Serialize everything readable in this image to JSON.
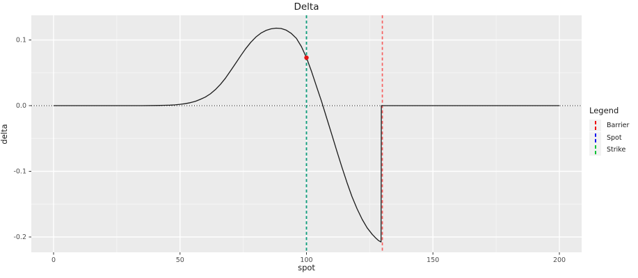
{
  "title": "Delta",
  "axes": {
    "x_label": "spot",
    "y_label": "delta"
  },
  "legend": {
    "title": "Legend",
    "position": "right",
    "items": [
      {
        "label": "Barrier",
        "color": "#ee0000",
        "style": "dashed"
      },
      {
        "label": "Spot",
        "color": "#1111ee",
        "style": "dashed"
      },
      {
        "label": "Strike",
        "color": "#00c232",
        "style": "dashed"
      }
    ]
  },
  "colors": {
    "panel_background": "#ebebeb",
    "grid_major": "#ffffff",
    "grid_minor": "#f5f5f5",
    "curve": "#1a1a1a",
    "tick_text": "#4d4d4d",
    "barrier_line": "#ff0000",
    "spot_line": "#0000ee",
    "strike_line": "#00be50",
    "marker": "#e41414"
  },
  "chart_data": {
    "type": "line",
    "title": "Delta",
    "xlabel": "spot",
    "ylabel": "delta",
    "xlim": [
      -8.8,
      208.8
    ],
    "ylim": [
      -0.2233,
      0.1376
    ],
    "grid": true,
    "legend_position": "right",
    "x_ticks": [
      0,
      50,
      100,
      150,
      200
    ],
    "x_tick_labels": [
      "0",
      "50",
      "100",
      "150",
      "200"
    ],
    "x_minor": [
      25,
      75,
      125,
      175
    ],
    "y_ticks": [
      0.1,
      0.0,
      -0.1,
      -0.2
    ],
    "y_tick_labels": [
      "0.1",
      "0.0",
      "-0.1",
      "-0.2"
    ],
    "y_minor": [
      0.05,
      -0.05,
      -0.15
    ],
    "series": [
      {
        "name": "delta-curve",
        "x": [
          0,
          10,
          20,
          30,
          35,
          40,
          42,
          44,
          46,
          48,
          50,
          52,
          54,
          56,
          58,
          60,
          62,
          64,
          66,
          68,
          70,
          72,
          74,
          76,
          78,
          80,
          82,
          84,
          86,
          88,
          90,
          92,
          94,
          96,
          98,
          100,
          102,
          104,
          106,
          108,
          110,
          112,
          114,
          116,
          118,
          120,
          122,
          124,
          126,
          127.5,
          128.5,
          129.2,
          129.5,
          129.6,
          130,
          135,
          140,
          150,
          160,
          170,
          180,
          190,
          200
        ],
        "y": [
          0,
          0,
          0,
          0,
          0,
          0.0002,
          0.0003,
          0.0005,
          0.0008,
          0.0012,
          0.002,
          0.003,
          0.0045,
          0.0065,
          0.0095,
          0.013,
          0.018,
          0.0245,
          0.0325,
          0.042,
          0.053,
          0.0645,
          0.076,
          0.087,
          0.0965,
          0.1045,
          0.1105,
          0.1145,
          0.117,
          0.118,
          0.1175,
          0.115,
          0.11,
          0.1025,
          0.09,
          0.073,
          0.052,
          0.029,
          0.006,
          -0.019,
          -0.044,
          -0.069,
          -0.0935,
          -0.117,
          -0.1385,
          -0.157,
          -0.173,
          -0.186,
          -0.196,
          -0.202,
          -0.2055,
          -0.207,
          -0.2075,
          0,
          0,
          0,
          0,
          0,
          0,
          0,
          0,
          0,
          0
        ]
      }
    ],
    "vlines": [
      {
        "name": "Spot",
        "x": 100,
        "color": "#0000ee",
        "opacity": 0.75,
        "style": "dashed"
      },
      {
        "name": "Strike",
        "x": 100,
        "color": "#00be50",
        "opacity": 0.8,
        "style": "dashed"
      },
      {
        "name": "Barrier",
        "x": 130,
        "color": "#ff0000",
        "opacity": 0.6,
        "style": "dashed"
      }
    ],
    "hlines": [
      {
        "name": "zero-line",
        "y": 0,
        "color": "#000000",
        "style": "dotted"
      }
    ],
    "points": [
      {
        "name": "current-delta-point",
        "x": 100,
        "y": 0.073,
        "color": "#e41414"
      }
    ]
  }
}
